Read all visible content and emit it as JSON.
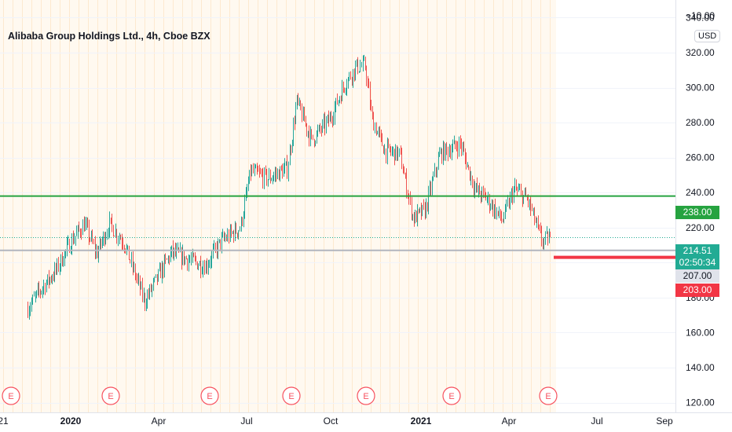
{
  "window": {
    "title": "Alibaba Group Holdings Ltd., 4h, Cboe BZX",
    "currency": "USD"
  },
  "chart_data": {
    "type": "candlestick",
    "title": "Alibaba Group Holdings Ltd., 4h, Cboe BZX",
    "ylim": [
      118,
      342
    ],
    "y_ticks": [
      120,
      140,
      160,
      180,
      200,
      220,
      240,
      260,
      280,
      300,
      320,
      340
    ],
    "y_tick_labels": [
      "120.00",
      "140.00",
      "160.00",
      "180.00",
      "200.00",
      "220.00",
      "240.00",
      "260.00",
      "280.00",
      "300.00",
      "320.00",
      "340.00"
    ],
    "top_label": "−10.00",
    "x_ticks": [
      {
        "label": "21",
        "bold": false
      },
      {
        "label": "2020",
        "bold": true
      },
      {
        "label": "Apr",
        "bold": false
      },
      {
        "label": "Jul",
        "bold": false
      },
      {
        "label": "Oct",
        "bold": false
      },
      {
        "label": "2021",
        "bold": true
      },
      {
        "label": "Apr",
        "bold": false
      },
      {
        "label": "Jul",
        "bold": false
      },
      {
        "label": "Sep",
        "bold": false
      }
    ],
    "earnings_marker": "E",
    "earnings_count": 7,
    "price_path": [
      [
        "2019-11-15",
        174
      ],
      [
        "2019-12-01",
        186
      ],
      [
        "2019-12-15",
        195
      ],
      [
        "2020-01-01",
        212
      ],
      [
        "2020-01-15",
        222
      ],
      [
        "2020-01-28",
        205
      ],
      [
        "2020-02-10",
        222
      ],
      [
        "2020-02-25",
        212
      ],
      [
        "2020-03-10",
        190
      ],
      [
        "2020-03-18",
        178
      ],
      [
        "2020-04-01",
        192
      ],
      [
        "2020-04-15",
        206
      ],
      [
        "2020-05-01",
        202
      ],
      [
        "2020-05-20",
        198
      ],
      [
        "2020-06-05",
        212
      ],
      [
        "2020-06-25",
        220
      ],
      [
        "2020-07-06",
        252
      ],
      [
        "2020-07-25",
        248
      ],
      [
        "2020-08-15",
        254
      ],
      [
        "2020-08-25",
        292
      ],
      [
        "2020-09-10",
        270
      ],
      [
        "2020-09-30",
        282
      ],
      [
        "2020-10-15",
        302
      ],
      [
        "2020-10-27",
        312
      ],
      [
        "2020-11-05",
        312
      ],
      [
        "2020-11-12",
        282
      ],
      [
        "2020-11-25",
        264
      ],
      [
        "2020-12-10",
        262
      ],
      [
        "2020-12-24",
        225
      ],
      [
        "2021-01-05",
        230
      ],
      [
        "2021-01-20",
        262
      ],
      [
        "2021-02-10",
        268
      ],
      [
        "2021-02-25",
        242
      ],
      [
        "2021-03-10",
        236
      ],
      [
        "2021-03-25",
        224
      ],
      [
        "2021-04-06",
        242
      ],
      [
        "2021-04-20",
        236
      ],
      [
        "2021-05-05",
        212
      ],
      [
        "2021-05-14",
        214.51
      ]
    ],
    "horizontal_levels": [
      {
        "value": 238.0,
        "label": "238.00",
        "color": "#26a340"
      },
      {
        "value": 207.0,
        "label": "207.00",
        "color": "#b2b5be"
      },
      {
        "value": 203.0,
        "label": "203.00",
        "color": "#f23645"
      }
    ],
    "last_price": {
      "value": 214.51,
      "label": "214.51",
      "countdown": "02:50:34",
      "color": "#22ab94"
    },
    "colors": {
      "up": "#26a69a",
      "down": "#ef5350",
      "grid": "#f0f3fa"
    }
  }
}
